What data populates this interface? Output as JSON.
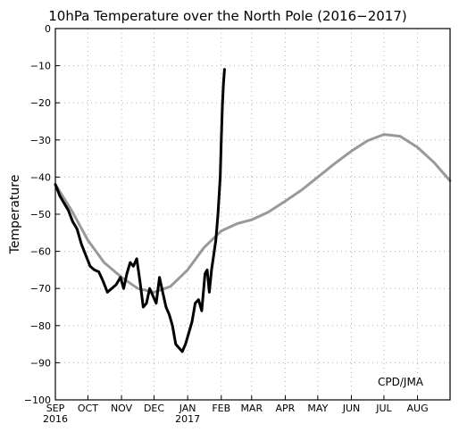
{
  "chart_data": {
    "type": "line",
    "title": "10hPa Temperature over the North Pole (2016−2017)",
    "ylabel": "Temperature",
    "xlabel": "",
    "credit": "CPD/JMA",
    "ylim": [
      -100,
      0
    ],
    "yticks": [
      0,
      -10,
      -20,
      -30,
      -40,
      -50,
      -60,
      -70,
      -80,
      -90,
      -100
    ],
    "ytick_labels": [
      "0",
      "−10",
      "−20",
      "−30",
      "−40",
      "−50",
      "−60",
      "−70",
      "−80",
      "−90",
      "−100"
    ],
    "xlim": [
      "2016-09-01",
      "2017-08-31"
    ],
    "xticks": [
      {
        "label": "SEP",
        "sub": "2016",
        "date": "2016-09-01"
      },
      {
        "label": "OCT",
        "sub": "",
        "date": "2016-10-01"
      },
      {
        "label": "NOV",
        "sub": "",
        "date": "2016-11-01"
      },
      {
        "label": "DEC",
        "sub": "",
        "date": "2016-12-01"
      },
      {
        "label": "JAN",
        "sub": "2017",
        "date": "2017-01-01"
      },
      {
        "label": "FEB",
        "sub": "",
        "date": "2017-02-01"
      },
      {
        "label": "MAR",
        "sub": "",
        "date": "2017-03-01"
      },
      {
        "label": "APR",
        "sub": "",
        "date": "2017-04-01"
      },
      {
        "label": "MAY",
        "sub": "",
        "date": "2017-05-01"
      },
      {
        "label": "JUN",
        "sub": "",
        "date": "2017-06-01"
      },
      {
        "label": "JUL",
        "sub": "",
        "date": "2017-07-01"
      },
      {
        "label": "AUG",
        "sub": "",
        "date": "2017-08-01"
      }
    ],
    "grid": true,
    "series": [
      {
        "color": "#999999",
        "x": [
          "2016-09-01",
          "2016-09-16",
          "2016-10-01",
          "2016-10-16",
          "2016-11-01",
          "2016-11-16",
          "2016-12-01",
          "2016-12-16",
          "2017-01-01",
          "2017-01-16",
          "2017-02-01",
          "2017-02-16",
          "2017-03-01",
          "2017-03-16",
          "2017-04-01",
          "2017-04-16",
          "2017-05-01",
          "2017-05-16",
          "2017-06-01",
          "2017-06-16",
          "2017-07-01",
          "2017-07-16",
          "2017-08-01",
          "2017-08-16",
          "2017-08-31"
        ],
        "y": [
          -42,
          -49,
          -57,
          -63,
          -67,
          -70,
          -71,
          -69.5,
          -65,
          -59,
          -54.5,
          -52.5,
          -51.5,
          -49.5,
          -46.5,
          -43.5,
          -40,
          -36.5,
          -33,
          -30.2,
          -28.5,
          -29,
          -32,
          -36,
          -41
        ]
      },
      {
        "color": "#000000",
        "x": [
          "2016-09-01",
          "2016-09-05",
          "2016-09-09",
          "2016-09-13",
          "2016-09-17",
          "2016-09-21",
          "2016-09-25",
          "2016-09-29",
          "2016-10-03",
          "2016-10-07",
          "2016-10-11",
          "2016-10-15",
          "2016-10-19",
          "2016-10-23",
          "2016-10-27",
          "2016-10-31",
          "2016-11-03",
          "2016-11-06",
          "2016-11-09",
          "2016-11-12",
          "2016-11-15",
          "2016-11-18",
          "2016-11-21",
          "2016-11-24",
          "2016-11-27",
          "2016-11-30",
          "2016-12-03",
          "2016-12-06",
          "2016-12-09",
          "2016-12-12",
          "2016-12-15",
          "2016-12-18",
          "2016-12-21",
          "2016-12-24",
          "2016-12-27",
          "2016-12-30",
          "2017-01-02",
          "2017-01-05",
          "2017-01-08",
          "2017-01-11",
          "2017-01-14",
          "2017-01-17",
          "2017-01-19",
          "2017-01-21",
          "2017-01-23",
          "2017-01-25",
          "2017-01-27",
          "2017-01-29",
          "2017-01-31",
          "2017-02-01",
          "2017-02-02",
          "2017-02-03",
          "2017-02-04"
        ],
        "y": [
          -42,
          -45,
          -47,
          -49,
          -52,
          -54,
          -58,
          -61,
          -64,
          -65,
          -65.5,
          -68,
          -71,
          -70,
          -69,
          -67,
          -70,
          -66,
          -63,
          -64,
          -62,
          -68,
          -75,
          -74,
          -70,
          -72,
          -74,
          -67,
          -71,
          -75,
          -77,
          -80,
          -85,
          -86,
          -87,
          -85,
          -82,
          -79,
          -74,
          -73,
          -76,
          -66,
          -65,
          -71,
          -65,
          -61,
          -57,
          -50,
          -40,
          -30,
          -21,
          -15,
          -11
        ]
      }
    ]
  }
}
